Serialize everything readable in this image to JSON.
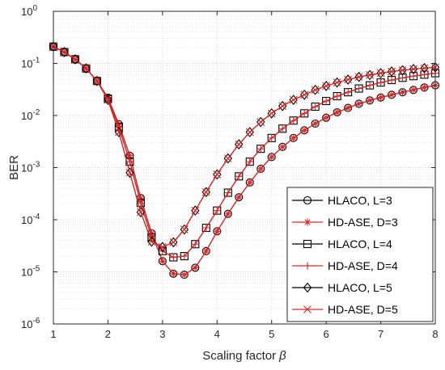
{
  "chart_data": {
    "type": "line",
    "xlabel": "Scaling factor",
    "xlabel_symbol": "β",
    "ylabel": "BER",
    "xlim": [
      1,
      8
    ],
    "ylim": [
      1e-06,
      1
    ],
    "yscale": "log",
    "grid": true,
    "legend_placement": "bottom-right",
    "x_ticks": [
      1,
      2,
      3,
      4,
      5,
      6,
      7,
      8
    ],
    "y_ticks": [
      {
        "value": 1e-06,
        "base": "10",
        "exp": "-6"
      },
      {
        "value": 1e-05,
        "base": "10",
        "exp": "-5"
      },
      {
        "value": 0.0001,
        "base": "10",
        "exp": "-4"
      },
      {
        "value": 0.001,
        "base": "10",
        "exp": "-3"
      },
      {
        "value": 0.01,
        "base": "10",
        "exp": "-2"
      },
      {
        "value": 0.1,
        "base": "10",
        "exp": "-1"
      },
      {
        "value": 1,
        "base": "10",
        "exp": "0"
      }
    ],
    "x": [
      1.0,
      1.2,
      1.4,
      1.6,
      1.8,
      2.0,
      2.2,
      2.4,
      2.6,
      2.8,
      3.0,
      3.2,
      3.4,
      3.6,
      3.8,
      4.0,
      4.2,
      4.4,
      4.6,
      4.8,
      5.0,
      5.2,
      5.4,
      5.6,
      5.8,
      6.0,
      6.2,
      6.4,
      6.6,
      6.8,
      7.0,
      7.2,
      7.4,
      7.6,
      7.8,
      8.0
    ],
    "series": [
      {
        "name": "HLACO, L=3",
        "marker": "circle",
        "color": "#000000",
        "values": [
          0.21,
          0.165,
          0.12,
          0.08,
          0.046,
          0.022,
          0.0068,
          0.0017,
          0.00026,
          5.5e-05,
          1.6e-05,
          9.2e-06,
          8.8e-06,
          1.2e-05,
          2.5e-05,
          6e-05,
          0.00013,
          0.00027,
          0.00052,
          0.00095,
          0.0016,
          0.0025,
          0.0037,
          0.0052,
          0.007,
          0.0091,
          0.0115,
          0.014,
          0.0168,
          0.0195,
          0.0222,
          0.025,
          0.028,
          0.031,
          0.0345,
          0.038
        ]
      },
      {
        "name": "HD-ASE, D=3",
        "marker": "asterisk",
        "color": "#d62728",
        "values": [
          0.21,
          0.165,
          0.12,
          0.08,
          0.046,
          0.022,
          0.0068,
          0.0017,
          0.00026,
          5.5e-05,
          1.6e-05,
          9.2e-06,
          8.8e-06,
          1.2e-05,
          2.5e-05,
          6e-05,
          0.00013,
          0.00027,
          0.00052,
          0.00095,
          0.0016,
          0.0025,
          0.0037,
          0.0052,
          0.007,
          0.0091,
          0.0115,
          0.014,
          0.0168,
          0.0195,
          0.0222,
          0.025,
          0.028,
          0.031,
          0.0345,
          0.038
        ]
      },
      {
        "name": "HLACO, L=4",
        "marker": "square",
        "color": "#000000",
        "values": [
          0.21,
          0.165,
          0.12,
          0.08,
          0.046,
          0.021,
          0.006,
          0.0013,
          0.00021,
          4.6e-05,
          2.5e-05,
          1.9e-05,
          2e-05,
          3.4e-05,
          7e-05,
          0.00015,
          0.00033,
          0.00068,
          0.0013,
          0.0023,
          0.0037,
          0.0056,
          0.008,
          0.011,
          0.0148,
          0.019,
          0.0235,
          0.028,
          0.033,
          0.038,
          0.043,
          0.048,
          0.053,
          0.057,
          0.061,
          0.065
        ]
      },
      {
        "name": "HD-ASE, D=4",
        "marker": "plus",
        "color": "#d62728",
        "values": [
          0.21,
          0.165,
          0.12,
          0.08,
          0.046,
          0.021,
          0.006,
          0.0013,
          0.00021,
          4.6e-05,
          2.5e-05,
          1.9e-05,
          2e-05,
          3.4e-05,
          7e-05,
          0.00015,
          0.00033,
          0.00068,
          0.0013,
          0.0023,
          0.0037,
          0.0056,
          0.008,
          0.011,
          0.0148,
          0.019,
          0.0235,
          0.028,
          0.033,
          0.038,
          0.043,
          0.048,
          0.053,
          0.057,
          0.061,
          0.065
        ]
      },
      {
        "name": "HLACO, L=5",
        "marker": "diamond",
        "color": "#000000",
        "values": [
          0.21,
          0.165,
          0.12,
          0.08,
          0.046,
          0.02,
          0.0048,
          0.0008,
          0.00014,
          3.8e-05,
          3e-05,
          3.7e-05,
          6.5e-05,
          0.00015,
          0.00034,
          0.00074,
          0.0015,
          0.0028,
          0.0048,
          0.0075,
          0.011,
          0.0152,
          0.02,
          0.025,
          0.031,
          0.037,
          0.043,
          0.049,
          0.055,
          0.06,
          0.065,
          0.07,
          0.074,
          0.078,
          0.081,
          0.084
        ]
      },
      {
        "name": "HD-ASE, D=5",
        "marker": "x",
        "color": "#d62728",
        "values": [
          0.21,
          0.165,
          0.12,
          0.08,
          0.046,
          0.02,
          0.0048,
          0.0008,
          0.00014,
          3.8e-05,
          3e-05,
          3.7e-05,
          6.5e-05,
          0.00015,
          0.00034,
          0.00074,
          0.0015,
          0.0028,
          0.0048,
          0.0075,
          0.011,
          0.0152,
          0.02,
          0.025,
          0.031,
          0.037,
          0.043,
          0.049,
          0.055,
          0.06,
          0.065,
          0.07,
          0.074,
          0.078,
          0.081,
          0.084
        ]
      }
    ]
  }
}
